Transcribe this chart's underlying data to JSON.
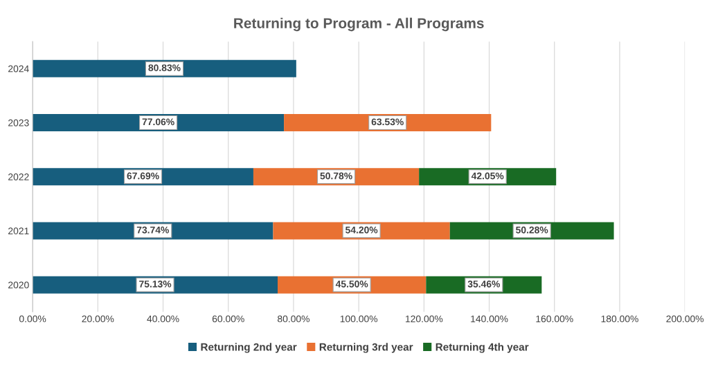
{
  "chart_data": {
    "type": "bar",
    "orientation": "horizontal",
    "stacked": true,
    "title": "Returning to Program - All Programs",
    "categories": [
      "2024",
      "2023",
      "2022",
      "2021",
      "2020"
    ],
    "series": [
      {
        "name": "Returning 2nd year",
        "color": "#175e7e",
        "values": [
          80.83,
          77.06,
          67.69,
          73.74,
          75.13
        ],
        "value_labels": [
          "80.83%",
          "77.06%",
          "67.69%",
          "73.74%",
          "75.13%"
        ]
      },
      {
        "name": "Returning 3rd year",
        "color": "#e97132",
        "values": [
          null,
          63.53,
          50.78,
          54.2,
          45.5
        ],
        "value_labels": [
          null,
          "63.53%",
          "50.78%",
          "54.20%",
          "45.50%"
        ]
      },
      {
        "name": "Returning 4th year",
        "color": "#196b24",
        "values": [
          null,
          null,
          42.05,
          50.28,
          35.46
        ],
        "value_labels": [
          null,
          null,
          "42.05%",
          "50.28%",
          "35.46%"
        ]
      }
    ],
    "xlim": [
      0,
      200
    ],
    "xticks": [
      {
        "value": 0,
        "label": "0.00%"
      },
      {
        "value": 20,
        "label": "20.00%"
      },
      {
        "value": 40,
        "label": "40.00%"
      },
      {
        "value": 60,
        "label": "60.00%"
      },
      {
        "value": 80,
        "label": "80.00%"
      },
      {
        "value": 100,
        "label": "100.00%"
      },
      {
        "value": 120,
        "label": "120.00%"
      },
      {
        "value": 140,
        "label": "140.00%"
      },
      {
        "value": 160,
        "label": "160.00%"
      },
      {
        "value": 180,
        "label": "180.00%"
      },
      {
        "value": 200,
        "label": "200.00%"
      }
    ],
    "grid": "x",
    "legend": "bottom"
  }
}
